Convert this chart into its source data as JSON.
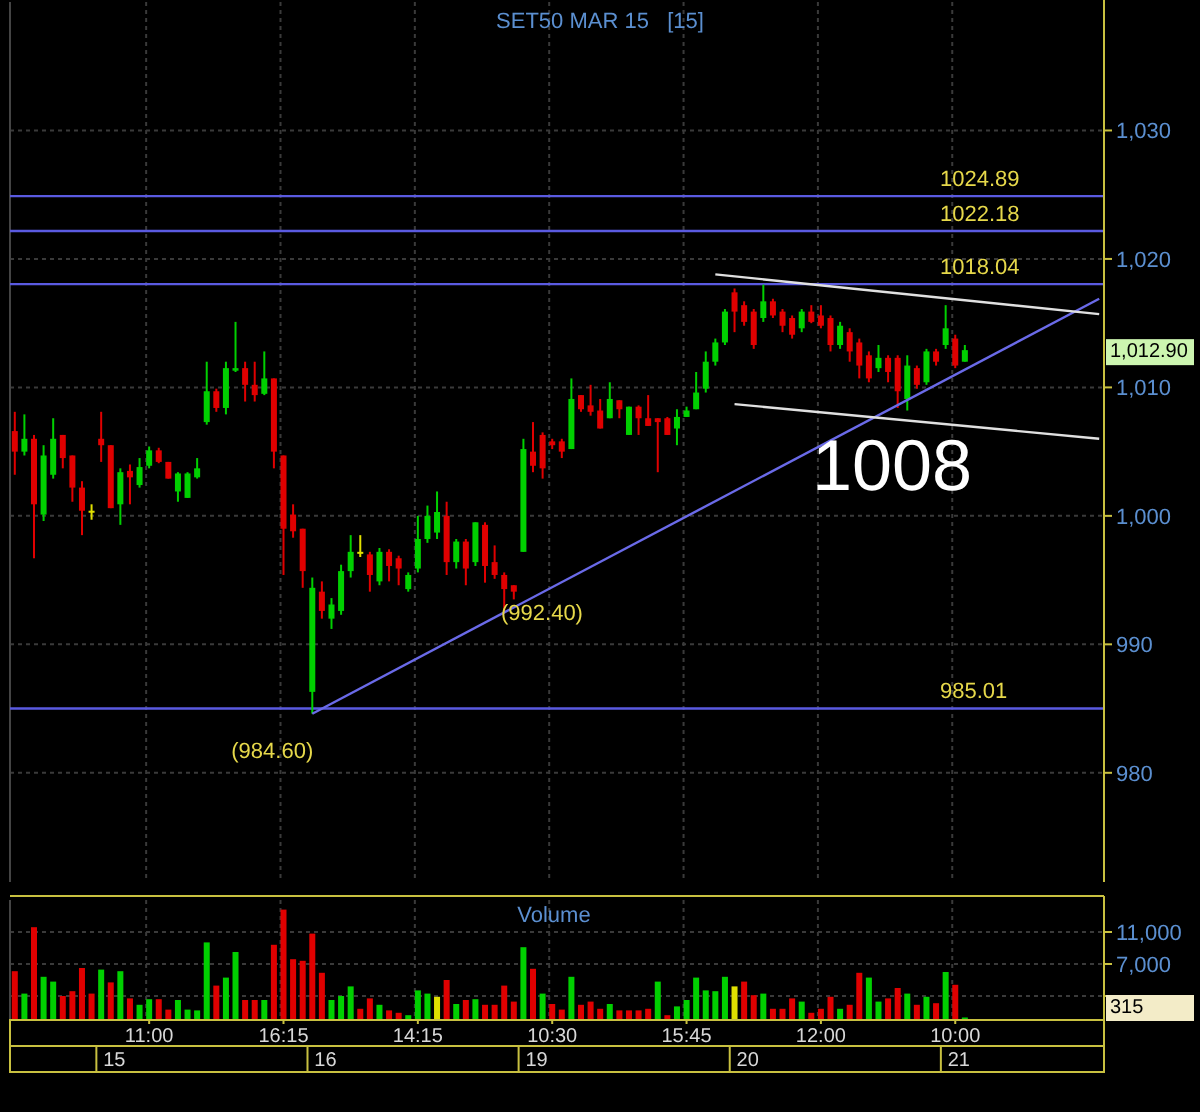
{
  "chart_data": [
    {
      "type": "candlestick",
      "title": "SET50 MAR 15   [15]",
      "categories": [
        null,
        null,
        null,
        null,
        null,
        null,
        null,
        null,
        null,
        null,
        null,
        null,
        null,
        null,
        null,
        null,
        null,
        null,
        null,
        null,
        null,
        null,
        null,
        null,
        null,
        null,
        null,
        null,
        null,
        null,
        null,
        null,
        null,
        null,
        null,
        null,
        null,
        null,
        null,
        null,
        null,
        null,
        null,
        null,
        null,
        null,
        null,
        null,
        null,
        null,
        null,
        null,
        null,
        null,
        null,
        null,
        null,
        null,
        null,
        null,
        null,
        null,
        null,
        null,
        null,
        null,
        null,
        null,
        null,
        null,
        null,
        null,
        null,
        null,
        null,
        null,
        null,
        null,
        null,
        null,
        null,
        null,
        null,
        null,
        null,
        null,
        null,
        null,
        null,
        null,
        null,
        null,
        null,
        null,
        null,
        null,
        null,
        null,
        null,
        null,
        null,
        null,
        null,
        null,
        null,
        null,
        null,
        null,
        null,
        null,
        null,
        null,
        null,
        null
      ],
      "ohlc": [
        [
          1006.6,
          1008.1,
          1003.2,
          1005.0
        ],
        [
          1005.0,
          1007.9,
          1004.7,
          1006.0
        ],
        [
          1006.0,
          1006.3,
          996.7,
          1000.9
        ],
        [
          1000.1,
          1005.5,
          999.6,
          1004.7
        ],
        [
          1003.2,
          1007.6,
          1002.9,
          1006.0
        ],
        [
          1006.3,
          1006.3,
          1003.7,
          1004.5
        ],
        [
          1004.7,
          1004.7,
          1001.1,
          1002.2
        ],
        [
          1002.2,
          1002.7,
          998.5,
          1000.4
        ],
        [
          1000.4,
          1000.9,
          999.7,
          1000.4
        ],
        [
          1006.0,
          1008.1,
          1004.2,
          1005.5
        ],
        [
          1005.5,
          1005.5,
          1000.6,
          1000.6
        ],
        [
          1000.9,
          1003.7,
          999.3,
          1003.4
        ],
        [
          1003.5,
          1004.0,
          1000.9,
          1003.0
        ],
        [
          1002.4,
          1004.5,
          1002.2,
          1003.8
        ],
        [
          1003.9,
          1005.4,
          1003.7,
          1005.1
        ],
        [
          1005.1,
          1005.3,
          1004.1,
          1004.2
        ],
        [
          1004.2,
          1004.2,
          1002.9,
          1002.9
        ],
        [
          1001.9,
          1003.4,
          1001.1,
          1003.3
        ],
        [
          1001.4,
          1003.4,
          1001.4,
          1003.3
        ],
        [
          1003.0,
          1004.5,
          1002.9,
          1003.7
        ],
        [
          1007.3,
          1012.0,
          1007.1,
          1009.7
        ],
        [
          1009.7,
          1009.9,
          1008.1,
          1008.4
        ],
        [
          1008.4,
          1012.0,
          1007.9,
          1011.5
        ],
        [
          1011.3,
          1015.1,
          1011.2,
          1011.5
        ],
        [
          1011.5,
          1012.0,
          1008.9,
          1010.2
        ],
        [
          1010.2,
          1012.0,
          1008.9,
          1009.4
        ],
        [
          1009.5,
          1012.8,
          1009.4,
          1010.7
        ],
        [
          1010.7,
          1010.7,
          1003.7,
          1005.0
        ],
        [
          1004.7,
          1004.7,
          995.4,
          999.0
        ],
        [
          1000.1,
          1000.9,
          998.3,
          998.8
        ],
        [
          999.0,
          999.0,
          994.4,
          995.7
        ],
        [
          986.3,
          995.2,
          984.6,
          994.4
        ],
        [
          994.1,
          994.9,
          992.0,
          992.6
        ],
        [
          992.0,
          993.6,
          991.2,
          993.1
        ],
        [
          992.6,
          996.2,
          992.3,
          995.7
        ],
        [
          995.7,
          998.5,
          995.2,
          997.2
        ],
        [
          997.2,
          998.5,
          996.8,
          997.2
        ],
        [
          997.0,
          997.2,
          994.1,
          995.4
        ],
        [
          994.9,
          997.5,
          994.6,
          997.2
        ],
        [
          997.2,
          997.4,
          994.9,
          996.1
        ],
        [
          996.7,
          996.9,
          994.6,
          995.9
        ],
        [
          994.3,
          995.6,
          994.1,
          995.4
        ],
        [
          995.9,
          1000.0,
          995.6,
          998.2
        ],
        [
          998.2,
          1000.8,
          997.9,
          1000.0
        ],
        [
          998.7,
          1001.9,
          998.2,
          1000.3
        ],
        [
          1000.0,
          1001.1,
          995.4,
          996.4
        ],
        [
          996.4,
          998.2,
          995.9,
          998.0
        ],
        [
          998.0,
          998.2,
          994.6,
          995.9
        ],
        [
          996.4,
          999.5,
          996.1,
          999.5
        ],
        [
          999.3,
          999.5,
          994.8,
          996.1
        ],
        [
          996.4,
          997.7,
          995.1,
          995.4
        ],
        [
          995.4,
          995.6,
          992.4,
          994.3
        ],
        [
          994.6,
          994.6,
          993.5,
          994.1
        ],
        [
          997.2,
          1006.0,
          997.2,
          1005.2
        ],
        [
          1005.0,
          1007.3,
          1003.4,
          1003.9
        ],
        [
          1006.3,
          1006.5,
          1002.9,
          1003.7
        ],
        [
          1005.8,
          1006.0,
          1005.2,
          1005.5
        ],
        [
          1005.8,
          1006.0,
          1004.5,
          1005.0
        ],
        [
          1005.2,
          1010.7,
          1005.2,
          1009.1
        ],
        [
          1009.4,
          1009.4,
          1008.1,
          1008.3
        ],
        [
          1008.6,
          1010.2,
          1007.8,
          1008.1
        ],
        [
          1008.2,
          1009.1,
          1006.8,
          1006.8
        ],
        [
          1007.6,
          1010.4,
          1007.6,
          1009.1
        ],
        [
          1009.0,
          1009.0,
          1007.6,
          1008.3
        ],
        [
          1006.3,
          1008.5,
          1006.3,
          1008.5
        ],
        [
          1008.5,
          1008.6,
          1006.3,
          1007.6
        ],
        [
          1007.6,
          1009.4,
          1007.0,
          1007.0
        ],
        [
          1007.6,
          1007.6,
          1003.4,
          1007.3
        ],
        [
          1007.6,
          1007.7,
          1006.3,
          1006.3
        ],
        [
          1006.8,
          1008.3,
          1005.5,
          1007.7
        ],
        [
          1007.7,
          1008.5,
          1007.7,
          1008.2
        ],
        [
          1008.3,
          1011.2,
          1008.3,
          1009.6
        ],
        [
          1009.9,
          1012.8,
          1009.6,
          1012.0
        ],
        [
          1012.0,
          1013.8,
          1011.7,
          1013.5
        ],
        [
          1013.5,
          1016.1,
          1013.3,
          1015.9
        ],
        [
          1017.4,
          1017.7,
          1014.3,
          1015.9
        ],
        [
          1016.4,
          1016.7,
          1014.8,
          1015.1
        ],
        [
          1015.9,
          1016.1,
          1013.0,
          1013.3
        ],
        [
          1015.4,
          1018.0,
          1015.1,
          1016.7
        ],
        [
          1016.7,
          1016.9,
          1015.4,
          1015.6
        ],
        [
          1015.9,
          1016.1,
          1014.3,
          1014.8
        ],
        [
          1015.4,
          1015.6,
          1013.8,
          1014.1
        ],
        [
          1014.6,
          1016.1,
          1014.3,
          1015.9
        ],
        [
          1015.9,
          1016.4,
          1015.0,
          1015.1
        ],
        [
          1015.6,
          1016.4,
          1014.6,
          1014.8
        ],
        [
          1015.4,
          1015.6,
          1012.8,
          1013.3
        ],
        [
          1013.3,
          1015.1,
          1013.0,
          1014.8
        ],
        [
          1014.3,
          1014.6,
          1012.0,
          1012.8
        ],
        [
          1013.5,
          1013.8,
          1010.7,
          1011.7
        ],
        [
          1012.5,
          1012.8,
          1010.4,
          1010.7
        ],
        [
          1011.5,
          1013.3,
          1011.2,
          1012.3
        ],
        [
          1012.3,
          1012.5,
          1010.4,
          1011.2
        ],
        [
          1012.3,
          1012.5,
          1008.4,
          1009.7
        ],
        [
          1009.1,
          1012.5,
          1008.2,
          1011.7
        ],
        [
          1011.5,
          1011.7,
          1009.9,
          1010.2
        ],
        [
          1010.4,
          1013.0,
          1010.2,
          1012.8
        ],
        [
          1012.8,
          1013.0,
          1011.7,
          1012.0
        ],
        [
          1013.3,
          1016.4,
          1013.0,
          1014.6
        ],
        [
          1013.8,
          1014.1,
          1011.5,
          1011.7
        ],
        [
          1012.0,
          1013.3,
          1012.0,
          1012.9
        ],
        null,
        null,
        null,
        null,
        null,
        null,
        null,
        null,
        null,
        null,
        null,
        null,
        null,
        null
      ],
      "series": [
        {
          "type": "line",
          "color": "#6a6ae8",
          "values": [
            null,
            null,
            null,
            null,
            null,
            null,
            null,
            null,
            null,
            null,
            null,
            null,
            null,
            null,
            null,
            null,
            null,
            null,
            null,
            null,
            null,
            null,
            null,
            null,
            null,
            null,
            null,
            null,
            null,
            null,
            null,
            984.6,
            null,
            null,
            null,
            null,
            null,
            null,
            null,
            null,
            null,
            null,
            null,
            null,
            null,
            null,
            null,
            null,
            null,
            null,
            null,
            null,
            null,
            null,
            null,
            null,
            null,
            null,
            null,
            null,
            null,
            null,
            null,
            null,
            null,
            null,
            null,
            null,
            null,
            null,
            null,
            null,
            null,
            null,
            null,
            null,
            null,
            null,
            null,
            null,
            null,
            null,
            null,
            null,
            null,
            null,
            null,
            null,
            null,
            null,
            null,
            null,
            null,
            null,
            null,
            null,
            null,
            null,
            null,
            null,
            null,
            null,
            null,
            null,
            null,
            null,
            null,
            null,
            null,
            null,
            null,
            null,
            null,
            1016.9
          ]
        },
        {
          "type": "line",
          "color": "#e0e0e0",
          "values": [
            null,
            null,
            null,
            null,
            null,
            null,
            null,
            null,
            null,
            null,
            null,
            null,
            null,
            null,
            null,
            null,
            null,
            null,
            null,
            null,
            null,
            null,
            null,
            null,
            null,
            null,
            null,
            null,
            null,
            null,
            null,
            null,
            null,
            null,
            null,
            null,
            null,
            null,
            null,
            null,
            null,
            null,
            null,
            null,
            null,
            null,
            null,
            null,
            null,
            null,
            null,
            null,
            null,
            null,
            null,
            null,
            null,
            null,
            null,
            null,
            null,
            null,
            null,
            null,
            null,
            null,
            null,
            null,
            null,
            null,
            null,
            null,
            null,
            1018.8,
            null,
            null,
            null,
            null,
            null,
            null,
            null,
            null,
            null,
            null,
            null,
            null,
            null,
            null,
            null,
            null,
            null,
            null,
            null,
            null,
            null,
            null,
            null,
            null,
            null,
            null,
            null,
            null,
            null,
            null,
            null,
            null,
            null,
            null,
            null,
            null,
            null,
            null,
            null,
            1015.7
          ]
        },
        {
          "type": "line",
          "color": "#e0e0e0",
          "values": [
            null,
            null,
            null,
            null,
            null,
            null,
            null,
            null,
            null,
            null,
            null,
            null,
            null,
            null,
            null,
            null,
            null,
            null,
            null,
            null,
            null,
            null,
            null,
            null,
            null,
            null,
            null,
            null,
            null,
            null,
            null,
            null,
            null,
            null,
            null,
            null,
            null,
            null,
            null,
            null,
            null,
            null,
            null,
            null,
            null,
            null,
            null,
            null,
            null,
            null,
            null,
            null,
            null,
            null,
            null,
            null,
            null,
            null,
            null,
            null,
            null,
            null,
            null,
            null,
            null,
            null,
            null,
            null,
            null,
            null,
            null,
            null,
            null,
            null,
            null,
            1008.7,
            null,
            null,
            null,
            null,
            null,
            null,
            null,
            null,
            null,
            null,
            null,
            null,
            null,
            null,
            null,
            null,
            null,
            null,
            null,
            null,
            null,
            null,
            null,
            null,
            null,
            null,
            null,
            null,
            null,
            null,
            null,
            null,
            null,
            null,
            null,
            null,
            null,
            1006.0
          ]
        }
      ],
      "ylim": [
        971.5,
        1040
      ],
      "yticks": [
        {
          "value": 980,
          "label": "980"
        },
        {
          "value": 990,
          "label": "990"
        },
        {
          "value": 1000,
          "label": "1,000"
        },
        {
          "value": 1010,
          "label": "1,010"
        },
        {
          "value": 1020,
          "label": "1,020"
        },
        {
          "value": 1030,
          "label": "1,030"
        }
      ],
      "tick_labels": "y",
      "grid": true,
      "ref_lines": [
        {
          "axis": "y",
          "value": 1024.89,
          "label": "1024.89",
          "color": "#5a5ae0"
        },
        {
          "axis": "y",
          "value": 1022.18,
          "label": "1022.18",
          "color": "#5a5ae0"
        },
        {
          "axis": "y",
          "value": 1018.04,
          "label": "1018.04",
          "color": "#5a5ae0"
        },
        {
          "axis": "y",
          "value": 985.01,
          "label": "985.01",
          "color": "#5a5ae0"
        }
      ],
      "annotations": [
        {
          "text": "(984.60)",
          "y": 984.6
        },
        "(992.40)",
        "1008",
        "1,012.90"
      ]
    },
    {
      "type": "bar",
      "title": "Volume",
      "categories": [
        null,
        null,
        null,
        null,
        null,
        null,
        null,
        null,
        null,
        null,
        null,
        null,
        null,
        null,
        "11:00",
        null,
        null,
        null,
        null,
        null,
        null,
        null,
        null,
        null,
        null,
        null,
        null,
        null,
        "16:15",
        null,
        null,
        null,
        null,
        null,
        null,
        null,
        null,
        null,
        null,
        null,
        null,
        null,
        "14:15",
        null,
        null,
        null,
        null,
        null,
        null,
        null,
        null,
        null,
        null,
        null,
        null,
        null,
        "10:30",
        null,
        null,
        null,
        null,
        null,
        null,
        null,
        null,
        null,
        null,
        null,
        null,
        null,
        "15:45",
        null,
        null,
        null,
        null,
        null,
        null,
        null,
        null,
        null,
        null,
        null,
        null,
        null,
        "12:00",
        null,
        null,
        null,
        null,
        null,
        null,
        null,
        null,
        null,
        null,
        null,
        null,
        null,
        "10:00",
        null,
        null,
        null,
        null,
        null,
        null,
        null,
        null,
        null,
        null,
        null,
        null,
        null,
        null,
        null
      ],
      "values": [
        6100,
        3300,
        11600,
        5400,
        4800,
        3000,
        3600,
        6500,
        3300,
        6300,
        4700,
        6100,
        2700,
        1900,
        2600,
        2600,
        1300,
        2500,
        1300,
        1200,
        9700,
        4300,
        5300,
        8500,
        2500,
        2500,
        2500,
        9400,
        13800,
        7600,
        7400,
        10800,
        5900,
        2500,
        3000,
        4200,
        1400,
        2700,
        1900,
        1200,
        900,
        600,
        3700,
        3300,
        2900,
        5000,
        2000,
        2500,
        2600,
        1900,
        1900,
        4300,
        2300,
        9100,
        6400,
        3300,
        2000,
        1300,
        5400,
        1900,
        2300,
        1400,
        2000,
        1200,
        1200,
        1200,
        1400,
        4800,
        600,
        1700,
        2500,
        5300,
        3700,
        3600,
        5400,
        4200,
        4800,
        3100,
        3300,
        1400,
        1400,
        2700,
        2300,
        900,
        1400,
        2900,
        1400,
        1900,
        5900,
        5300,
        2300,
        2700,
        4000,
        3300,
        1900,
        2900,
        2100,
        6000,
        4400,
        315,
        null,
        null,
        null,
        null,
        null,
        null,
        null,
        null,
        null,
        null,
        null,
        null,
        null,
        null
      ],
      "colors": [
        "#e00000",
        "#00d000",
        "#e00000",
        "#00d000",
        "#00d000",
        "#e00000",
        "#e00000",
        "#e00000",
        "#e00000",
        "#00d000",
        "#e00000",
        "#00d000",
        "#e00000",
        "#00d000",
        "#00d000",
        "#e00000",
        "#e00000",
        "#00d000",
        "#00d000",
        "#00d000",
        "#00d000",
        "#e00000",
        "#00d000",
        "#00d000",
        "#e00000",
        "#e00000",
        "#00d000",
        "#e00000",
        "#e00000",
        "#e00000",
        "#e00000",
        "#e00000",
        "#e00000",
        "#00d000",
        "#00d000",
        "#00d000",
        "#e00000",
        "#e00000",
        "#00d000",
        "#e00000",
        "#e00000",
        "#00d000",
        "#00d000",
        "#00d000",
        "#e0e000",
        "#e00000",
        "#00d000",
        "#e00000",
        "#00d000",
        "#e00000",
        "#e00000",
        "#e00000",
        "#e00000",
        "#00d000",
        "#e00000",
        "#00d000",
        "#e00000",
        "#e00000",
        "#00d000",
        "#e00000",
        "#e00000",
        "#e00000",
        "#00d000",
        "#e00000",
        "#e00000",
        "#e00000",
        "#e00000",
        "#00d000",
        "#e00000",
        "#00d000",
        "#00d000",
        "#00d000",
        "#00d000",
        "#00d000",
        "#00d000",
        "#e0e000",
        "#e00000",
        "#e00000",
        "#00d000",
        "#e00000",
        "#e00000",
        "#e00000",
        "#00d000",
        "#e00000",
        "#e00000",
        "#e00000",
        "#00d000",
        "#e00000",
        "#e00000",
        "#00d000",
        "#00d000",
        "#e00000",
        "#e00000",
        "#00d000",
        "#e00000",
        "#00d000",
        "#e00000",
        "#00d000",
        "#e00000",
        "#00d000",
        null,
        null,
        null,
        null,
        null,
        null,
        null,
        null,
        null,
        null,
        null,
        null,
        null,
        null
      ],
      "ylim": [
        0,
        15000
      ],
      "yticks": [
        {
          "value": 3000,
          "label": null
        },
        {
          "value": 7000,
          "label": "7,000"
        },
        {
          "value": 11000,
          "label": "11,000"
        }
      ],
      "grid": true,
      "annotations": [
        "15",
        "16",
        "19",
        "20",
        "21",
        "315"
      ]
    }
  ]
}
